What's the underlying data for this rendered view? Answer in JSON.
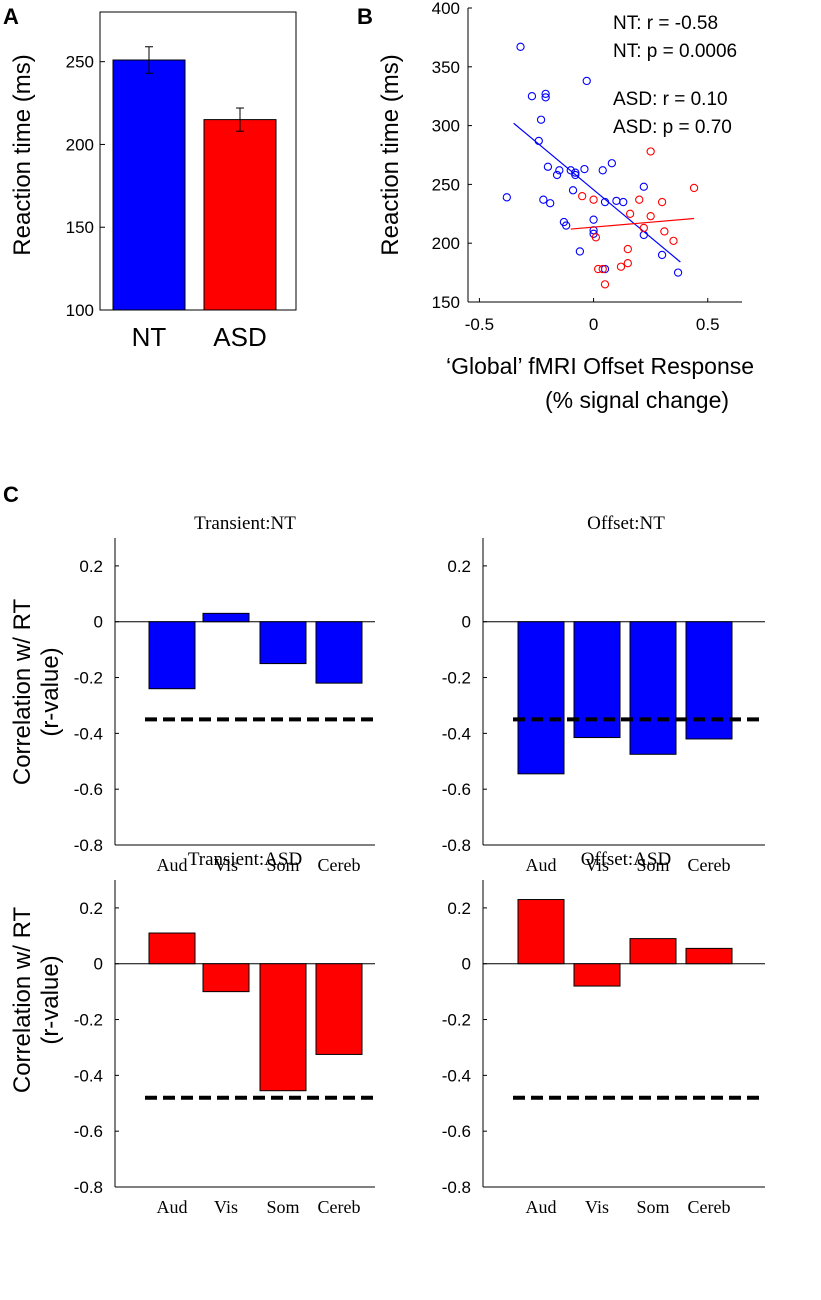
{
  "colors": {
    "nt": "#0000ff",
    "asd": "#ff0000",
    "threshold": "#000000"
  },
  "panel_a": {
    "letter": "A",
    "chart_data": {
      "type": "bar",
      "categories": [
        "NT",
        "ASD"
      ],
      "values": [
        251,
        215
      ],
      "errors": [
        8,
        7
      ],
      "ylabel": "Reaction time (ms)",
      "ylim": [
        100,
        280
      ],
      "yticks": [
        "100",
        "150",
        "200",
        "250"
      ]
    }
  },
  "panel_b": {
    "letter": "B",
    "stats": {
      "nt_r": "NT: r =  -0.58",
      "nt_p": "NT: p = 0.0006",
      "asd_r": "ASD: r =  0.10",
      "asd_p": "ASD: p = 0.70"
    },
    "chart_data": {
      "type": "scatter",
      "xlabel_line1": "‘Global’ fMRI Offset Response",
      "xlabel_line2": "(% signal change)",
      "ylabel": "Reaction time (ms)",
      "xlim": [
        -0.55,
        0.65
      ],
      "ylim": [
        150,
        400
      ],
      "xticks": [
        "-0.5",
        "0",
        "0.5"
      ],
      "yticks": [
        "150",
        "200",
        "250",
        "300",
        "350",
        "400"
      ],
      "series": [
        {
          "name": "NT",
          "points": [
            [
              -0.32,
              367
            ],
            [
              -0.27,
              325
            ],
            [
              -0.21,
              327
            ],
            [
              -0.21,
              324
            ],
            [
              -0.03,
              338
            ],
            [
              -0.23,
              305
            ],
            [
              -0.24,
              287
            ],
            [
              -0.2,
              265
            ],
            [
              -0.15,
              262
            ],
            [
              -0.1,
              262
            ],
            [
              -0.08,
              260
            ],
            [
              -0.04,
              263
            ],
            [
              -0.08,
              258
            ],
            [
              -0.16,
              258
            ],
            [
              0.04,
              262
            ],
            [
              0.08,
              268
            ],
            [
              -0.09,
              245
            ],
            [
              0.05,
              235
            ],
            [
              0.1,
              236
            ],
            [
              0.13,
              235
            ],
            [
              -0.38,
              239
            ],
            [
              -0.19,
              234
            ],
            [
              -0.22,
              237
            ],
            [
              0.22,
              248
            ],
            [
              -0.13,
              218
            ],
            [
              -0.12,
              215
            ],
            [
              0.0,
              220
            ],
            [
              0.0,
              211
            ],
            [
              0.0,
              208
            ],
            [
              0.22,
              207
            ],
            [
              -0.06,
              193
            ],
            [
              0.3,
              190
            ],
            [
              0.37,
              175
            ],
            [
              0.05,
              178
            ]
          ],
          "fit": [
            [
              -0.35,
              302
            ],
            [
              0.38,
              184
            ]
          ]
        },
        {
          "name": "ASD",
          "points": [
            [
              0.25,
              278
            ],
            [
              -0.05,
              240
            ],
            [
              0.0,
              237
            ],
            [
              0.2,
              237
            ],
            [
              0.44,
              247
            ],
            [
              0.3,
              235
            ],
            [
              0.16,
              225
            ],
            [
              0.25,
              223
            ],
            [
              0.35,
              202
            ],
            [
              0.22,
              213
            ],
            [
              0.31,
              210
            ],
            [
              0.01,
              205
            ],
            [
              0.15,
              195
            ],
            [
              0.02,
              178
            ],
            [
              0.04,
              178
            ],
            [
              0.12,
              180
            ],
            [
              0.15,
              183
            ],
            [
              0.05,
              165
            ]
          ],
          "fit": [
            [
              -0.1,
              212
            ],
            [
              0.44,
              221
            ]
          ]
        }
      ]
    }
  },
  "panel_c": {
    "letter": "C",
    "ylabel_line1": "Correlation w/ RT",
    "ylabel_line2": "(r-value)",
    "chart_data": [
      {
        "type": "bar",
        "title": "Transient:NT",
        "series": "NT",
        "categories": [
          "Aud",
          "Vis",
          "Som",
          "Cereb"
        ],
        "values": [
          -0.24,
          0.03,
          -0.15,
          -0.22
        ],
        "threshold": -0.35,
        "ylim": [
          -0.8,
          0.3
        ],
        "yticks": [
          "0.2",
          "0",
          "-0.2",
          "-0.4",
          "-0.6",
          "-0.8"
        ]
      },
      {
        "type": "bar",
        "title": "Offset:NT",
        "series": "NT",
        "categories": [
          "Aud",
          "Vis",
          "Som",
          "Cereb"
        ],
        "values": [
          -0.545,
          -0.415,
          -0.475,
          -0.42
        ],
        "threshold": -0.35,
        "ylim": [
          -0.8,
          0.3
        ],
        "yticks": [
          "0.2",
          "0",
          "-0.2",
          "-0.4",
          "-0.6",
          "-0.8"
        ]
      },
      {
        "type": "bar",
        "title": "Transient:ASD",
        "series": "ASD",
        "categories": [
          "Aud",
          "Vis",
          "Som",
          "Cereb"
        ],
        "values": [
          0.11,
          -0.1,
          -0.455,
          -0.325
        ],
        "threshold": -0.48,
        "ylim": [
          -0.8,
          0.3
        ],
        "yticks": [
          "0.2",
          "0",
          "-0.2",
          "-0.4",
          "-0.6",
          "-0.8"
        ]
      },
      {
        "type": "bar",
        "title": "Offset:ASD",
        "series": "ASD",
        "categories": [
          "Aud",
          "Vis",
          "Som",
          "Cereb"
        ],
        "values": [
          0.23,
          -0.08,
          0.09,
          0.055
        ],
        "threshold": -0.48,
        "ylim": [
          -0.8,
          0.3
        ],
        "yticks": [
          "0.2",
          "0",
          "-0.2",
          "-0.4",
          "-0.6",
          "-0.8"
        ]
      }
    ]
  }
}
